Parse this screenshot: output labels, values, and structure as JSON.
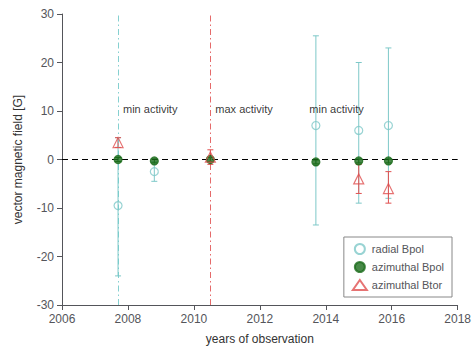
{
  "chart_data": {
    "type": "scatter",
    "xlabel": "years of observation",
    "ylabel": "vector magnetic field [G]",
    "xlim": [
      2006,
      2018
    ],
    "ylim": [
      -30,
      30
    ],
    "xticks": [
      2006,
      2008,
      2010,
      2012,
      2014,
      2016,
      2018
    ],
    "yticks": [
      -30,
      -20,
      -10,
      0,
      10,
      20,
      30
    ],
    "grid": false,
    "legend": "lower right",
    "series": [
      {
        "name": "radial Bpol",
        "color": "#7ec8c8",
        "marker": "circle_open",
        "x": [
          2007.7,
          2008.8,
          2013.7,
          2015.0,
          2015.9
        ],
        "values": [
          -9.5,
          -2.5,
          7.0,
          6.0,
          7.0
        ],
        "yerr_lo": [
          14.5,
          2.0,
          20.5,
          15.0,
          15.0
        ],
        "yerr_hi": [
          14.0,
          2.0,
          18.5,
          14.0,
          16.0
        ]
      },
      {
        "name": "azimuthal Bpol",
        "color": "#1a6b1a",
        "marker": "circle",
        "x": [
          2007.7,
          2008.8,
          2010.5,
          2013.7,
          2015.0,
          2015.9
        ],
        "values": [
          0.0,
          -0.3,
          0.0,
          -0.5,
          -0.3,
          -0.3
        ],
        "yerr_lo": [
          0.4,
          0.4,
          0.4,
          0.4,
          0.4,
          0.4
        ],
        "yerr_hi": [
          0.4,
          0.4,
          0.4,
          0.4,
          0.4,
          0.4
        ]
      },
      {
        "name": "azimuthal Btor",
        "color": "#e05050",
        "marker": "triangle_open",
        "x": [
          2007.7,
          2010.5,
          2015.0,
          2015.9
        ],
        "values": [
          3.5,
          0.5,
          -4.0,
          -6.0
        ],
        "yerr_lo": [
          1.0,
          1.5,
          3.0,
          3.0
        ],
        "yerr_hi": [
          1.0,
          1.5,
          3.0,
          3.5
        ]
      }
    ],
    "vlines": [
      {
        "x": 2007.7,
        "color": "#70c8c8",
        "line_style": "dashdot"
      },
      {
        "x": 2010.5,
        "color": "#e05050",
        "line_style": "dashdot"
      }
    ],
    "hlines": [
      {
        "y": 0,
        "color": "#000000",
        "line_style": "dashed"
      }
    ],
    "annotations": [
      {
        "text": "min activity",
        "x": 2007.85,
        "y": 10.5
      },
      {
        "text": "max activity",
        "x": 2010.65,
        "y": 10.5
      },
      {
        "text": "min activity",
        "x": 2013.5,
        "y": 10.5
      }
    ]
  }
}
